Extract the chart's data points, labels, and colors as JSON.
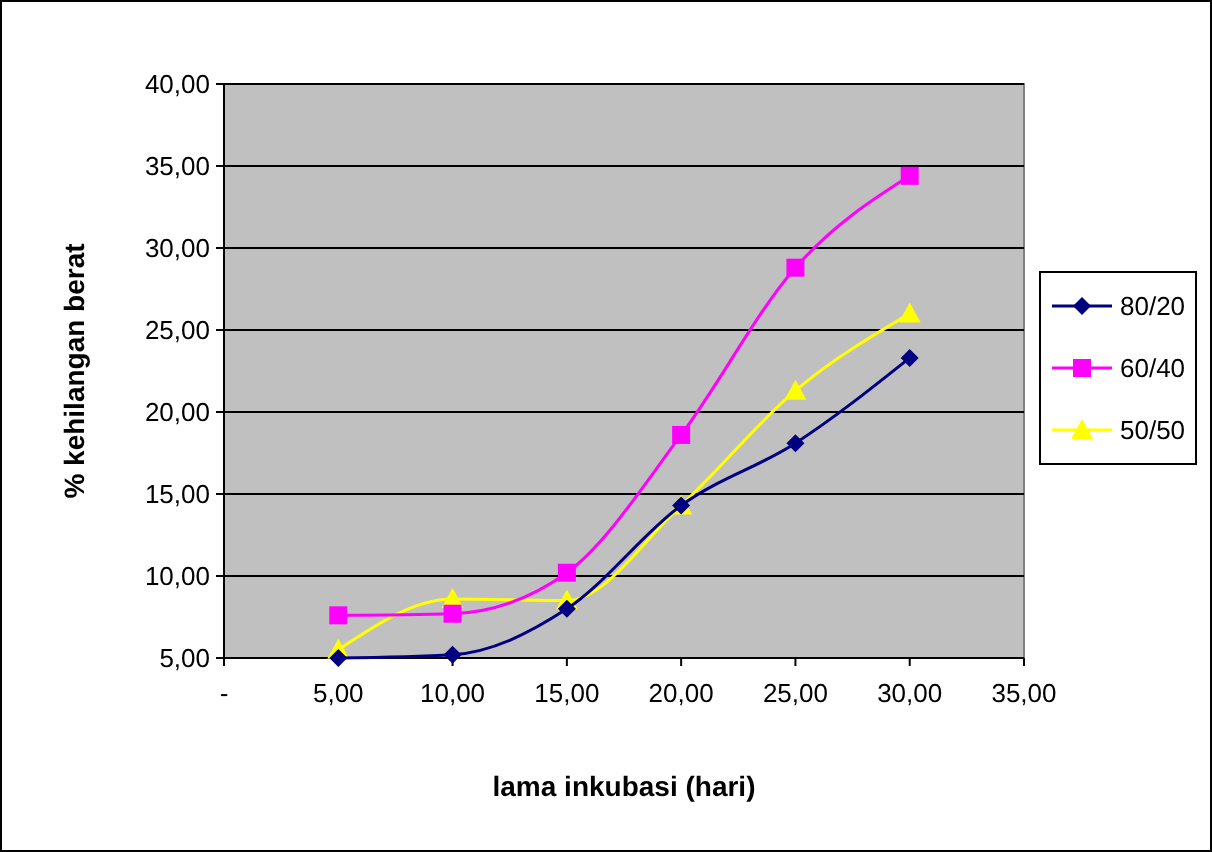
{
  "chart_data": {
    "type": "line",
    "xlabel": "lama inkubasi (hari)",
    "ylabel": "% kehilangan berat",
    "x": [
      5,
      10,
      15,
      20,
      25,
      30
    ],
    "xlim": [
      0,
      35
    ],
    "xticks": [
      {
        "value": 0,
        "label": "-"
      },
      {
        "value": 5,
        "label": "5,00"
      },
      {
        "value": 10,
        "label": "10,00"
      },
      {
        "value": 15,
        "label": "15,00"
      },
      {
        "value": 20,
        "label": "20,00"
      },
      {
        "value": 25,
        "label": "25,00"
      },
      {
        "value": 30,
        "label": "30,00"
      },
      {
        "value": 35,
        "label": "35,00"
      }
    ],
    "ylim": [
      5,
      40
    ],
    "yticks": [
      {
        "value": 5,
        "label": "5,00"
      },
      {
        "value": 10,
        "label": "10,00"
      },
      {
        "value": 15,
        "label": "15,00"
      },
      {
        "value": 20,
        "label": "20,00"
      },
      {
        "value": 25,
        "label": "25,00"
      },
      {
        "value": 30,
        "label": "30,00"
      },
      {
        "value": 35,
        "label": "35,00"
      },
      {
        "value": 40,
        "label": "40,00"
      }
    ],
    "grid": "y",
    "legend": "right",
    "series": [
      {
        "name": "80/20",
        "color": "#000080",
        "marker": "diamond",
        "values": [
          5.0,
          5.2,
          8.0,
          14.3,
          18.1,
          23.3
        ]
      },
      {
        "name": "60/40",
        "color": "#ff00ff",
        "marker": "square",
        "values": [
          7.6,
          7.7,
          10.2,
          18.6,
          28.8,
          34.4
        ]
      },
      {
        "name": "50/50",
        "color": "#ffff00",
        "marker": "triangle",
        "values": [
          5.5,
          8.6,
          8.5,
          14.3,
          21.3,
          26.0
        ]
      }
    ]
  }
}
